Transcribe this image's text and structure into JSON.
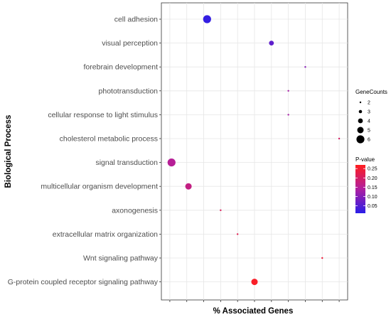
{
  "chart_data": {
    "type": "scatter",
    "xlabel": "% Associated Genes",
    "ylabel": "Biological Process",
    "grid": true,
    "legend_position": "right",
    "categories": [
      "cell adhesion",
      "visual perception",
      "forebrain development",
      "phototransduction",
      "cellular response to light stimulus",
      "cholesterol metabolic process",
      "signal transduction",
      "multicellular organism development",
      "axonogenesis",
      "extracellular matrix organization",
      "Wnt signaling pathway",
      "G-protein coupled receptor signaling pathway"
    ],
    "points": [
      {
        "process": "cell adhesion",
        "x": 3.2,
        "gene_count": 6,
        "p_value": 0.02
      },
      {
        "process": "visual perception",
        "x": 7.0,
        "gene_count": 4,
        "p_value": 0.06
      },
      {
        "process": "forebrain development",
        "x": 9.0,
        "gene_count": 2,
        "p_value": 0.1
      },
      {
        "process": "phototransduction",
        "x": 8.0,
        "gene_count": 2,
        "p_value": 0.13
      },
      {
        "process": "cellular response to light stimulus",
        "x": 8.0,
        "gene_count": 2,
        "p_value": 0.13
      },
      {
        "process": "cholesterol metabolic process",
        "x": 11.0,
        "gene_count": 2,
        "p_value": 0.2
      },
      {
        "process": "signal transduction",
        "x": 1.1,
        "gene_count": 6,
        "p_value": 0.15
      },
      {
        "process": "multicellular organism development",
        "x": 2.1,
        "gene_count": 5,
        "p_value": 0.17
      },
      {
        "process": "axonogenesis",
        "x": 4.0,
        "gene_count": 2,
        "p_value": 0.21
      },
      {
        "process": "extracellular matrix organization",
        "x": 5.0,
        "gene_count": 2,
        "p_value": 0.22
      },
      {
        "process": "Wnt signaling pathway",
        "x": 10.0,
        "gene_count": 2,
        "p_value": 0.24
      },
      {
        "process": "G-protein coupled receptor signaling pathway",
        "x": 6.0,
        "gene_count": 5,
        "p_value": 0.26
      }
    ],
    "xlim": [
      0.5,
      11.5
    ],
    "x_gridlines": [
      1,
      2,
      3,
      4,
      5,
      6,
      7,
      8,
      9,
      10,
      11
    ],
    "size_legend": {
      "title": "GeneCounts",
      "values": [
        2,
        3,
        4,
        5,
        6
      ],
      "labels": [
        "2",
        "3",
        "4",
        "5",
        "6"
      ]
    },
    "color_legend": {
      "title": "P-value",
      "range": [
        0.01,
        0.27
      ],
      "ticks": [
        0.05,
        0.1,
        0.15,
        0.2,
        0.25
      ],
      "tick_labels": [
        "0.05",
        "0.10",
        "0.15",
        "0.20",
        "0.25"
      ],
      "low_color": "#2a1ee8",
      "high_color": "#ff1e1e"
    }
  }
}
